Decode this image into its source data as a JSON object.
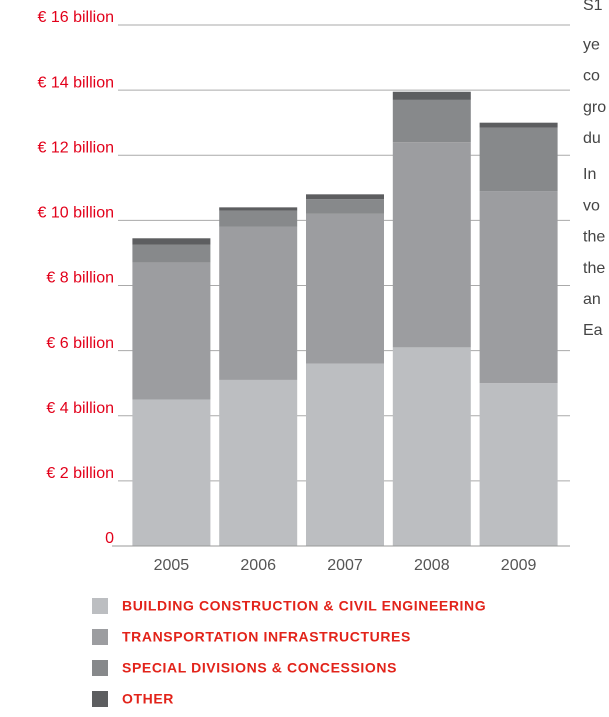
{
  "chart_data": {
    "type": "stacked_bar",
    "categories": [
      "2005",
      "2006",
      "2007",
      "2008",
      "2009"
    ],
    "series": [
      {
        "name": "BUILDING CONSTRUCTION & CIVIL ENGINEERING",
        "color": "#bcbec1",
        "values": [
          4.5,
          5.1,
          5.6,
          6.1,
          5.0
        ]
      },
      {
        "name": "TRANSPORTATION INFRASTRUCTURES",
        "color": "#9c9da0",
        "values": [
          4.2,
          4.7,
          4.6,
          6.3,
          5.9
        ]
      },
      {
        "name": "SPECIAL DIVISIONS & CONCESSIONS",
        "color": "#87898b",
        "values": [
          0.55,
          0.5,
          0.45,
          1.3,
          1.95
        ]
      },
      {
        "name": "OTHER",
        "color": "#5d5e60",
        "values": [
          0.2,
          0.1,
          0.15,
          0.25,
          0.15
        ]
      }
    ],
    "ylim": [
      0,
      16
    ],
    "yticks": [
      0,
      {
        "value": 2,
        "label": "€ 2 billion"
      },
      {
        "value": 4,
        "label": "€ 4 billion"
      },
      {
        "value": 6,
        "label": "€ 6 billion"
      },
      {
        "value": 8,
        "label": "€ 8 billion"
      },
      {
        "value": 10,
        "label": "€ 10 billion"
      },
      {
        "value": 12,
        "label": "€ 12 billion"
      },
      {
        "value": 14,
        "label": "€ 14 billion"
      },
      {
        "value": 16,
        "label": "€ 16 billion"
      }
    ],
    "grid": true,
    "side_text": [
      "S1",
      "ye",
      "co",
      "gro",
      "du",
      "In",
      "vo",
      "the",
      "the",
      "an",
      "Ea"
    ]
  }
}
